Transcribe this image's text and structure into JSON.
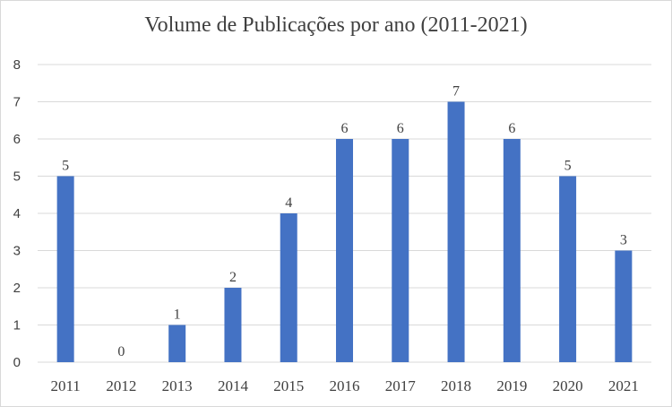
{
  "chart_data": {
    "type": "bar",
    "title": "Volume de Publicações por ano (2011-2021)",
    "categories": [
      "2011",
      "2012",
      "2013",
      "2014",
      "2015",
      "2016",
      "2017",
      "2018",
      "2019",
      "2020",
      "2021"
    ],
    "values": [
      5,
      0,
      1,
      2,
      4,
      6,
      6,
      7,
      6,
      5,
      3
    ],
    "data_labels": true,
    "ylim": [
      0,
      8
    ],
    "yticks": [
      0,
      1,
      2,
      3,
      4,
      5,
      6,
      7,
      8
    ],
    "grid": true,
    "legend": "none",
    "colors": {
      "bar": "#4472c4",
      "grid": "#d9d9d9",
      "text": "#404040"
    }
  }
}
